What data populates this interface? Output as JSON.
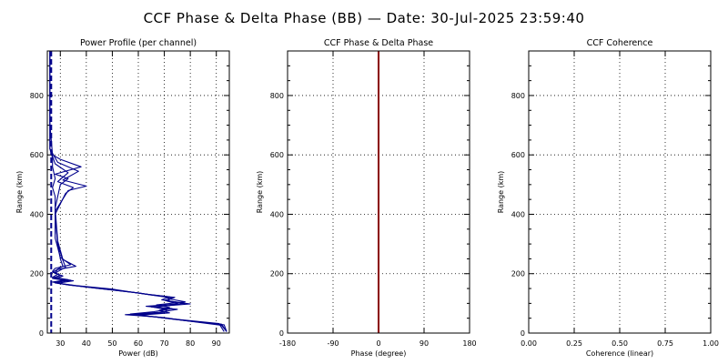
{
  "suptitle": "CCF Phase & Delta Phase (BB) — Date: 30-Jul-2025 23:59:40",
  "chart_data": [
    {
      "type": "line",
      "title": "Power Profile (per channel)",
      "xlabel": "Power (dB)",
      "ylabel": "Range (km)",
      "xlim": [
        25,
        95
      ],
      "ylim": [
        0,
        950
      ],
      "xticks": [
        30,
        40,
        50,
        60,
        70,
        80,
        90
      ],
      "yticks": [
        0,
        200,
        400,
        600,
        800
      ],
      "grid": true,
      "line_color": "#00008b",
      "noise_floor": {
        "x": 26.5,
        "style": "dashed"
      },
      "series": [
        {
          "values": [
            [
              94,
              5
            ],
            [
              92,
              30
            ],
            [
              75,
              45
            ],
            [
              66,
              55
            ],
            [
              55,
              62
            ],
            [
              68,
              70
            ],
            [
              75,
              80
            ],
            [
              65,
              88
            ],
            [
              80,
              98
            ],
            [
              70,
              110
            ],
            [
              74,
              120
            ],
            [
              65,
              128
            ],
            [
              60,
              135
            ],
            [
              45,
              150
            ],
            [
              33,
              162
            ],
            [
              28,
              170
            ],
            [
              34,
              178
            ],
            [
              27,
              185
            ],
            [
              30,
              195
            ],
            [
              27,
              205
            ],
            [
              29,
              215
            ],
            [
              31,
              225
            ],
            [
              30,
              250
            ],
            [
              29,
              300
            ],
            [
              28,
              400
            ],
            [
              28,
              460
            ],
            [
              27,
              490
            ],
            [
              28,
              520
            ],
            [
              27,
              560
            ],
            [
              27,
              590
            ],
            [
              26,
              620
            ],
            [
              26,
              700
            ],
            [
              26,
              800
            ],
            [
              26,
              900
            ],
            [
              26,
              950
            ]
          ]
        },
        {
          "values": [
            [
              94,
              5
            ],
            [
              93,
              28
            ],
            [
              78,
              42
            ],
            [
              70,
              52
            ],
            [
              60,
              60
            ],
            [
              72,
              68
            ],
            [
              68,
              76
            ],
            [
              72,
              86
            ],
            [
              67,
              95
            ],
            [
              78,
              105
            ],
            [
              72,
              115
            ],
            [
              70,
              124
            ],
            [
              62,
              132
            ],
            [
              50,
              148
            ],
            [
              36,
              160
            ],
            [
              29,
              168
            ],
            [
              35,
              176
            ],
            [
              28,
              183
            ],
            [
              31,
              192
            ],
            [
              28,
              202
            ],
            [
              30,
              212
            ],
            [
              32,
              222
            ],
            [
              31,
              245
            ],
            [
              29,
              300
            ],
            [
              28,
              400
            ],
            [
              32,
              470
            ],
            [
              35,
              490
            ],
            [
              29,
              510
            ],
            [
              33,
              540
            ],
            [
              28,
              570
            ],
            [
              26,
              620
            ],
            [
              26,
              750
            ],
            [
              26,
              950
            ]
          ]
        },
        {
          "values": [
            [
              93,
              5
            ],
            [
              91,
              32
            ],
            [
              74,
              47
            ],
            [
              64,
              57
            ],
            [
              57,
              64
            ],
            [
              66,
              72
            ],
            [
              73,
              82
            ],
            [
              63,
              90
            ],
            [
              78,
              100
            ],
            [
              69,
              112
            ],
            [
              72,
              122
            ],
            [
              64,
              130
            ],
            [
              58,
              137
            ],
            [
              43,
              152
            ],
            [
              32,
              164
            ],
            [
              27,
              172
            ],
            [
              33,
              180
            ],
            [
              27,
              188
            ],
            [
              29,
              198
            ],
            [
              27,
              208
            ],
            [
              28,
              218
            ],
            [
              34,
              230
            ],
            [
              30,
              255
            ],
            [
              28,
              320
            ],
            [
              28,
              410
            ],
            [
              33,
              480
            ],
            [
              40,
              495
            ],
            [
              31,
              515
            ],
            [
              37,
              545
            ],
            [
              29,
              575
            ],
            [
              26,
              620
            ],
            [
              26,
              800
            ],
            [
              26,
              950
            ]
          ]
        },
        {
          "values": [
            [
              94,
              5
            ],
            [
              92,
              26
            ],
            [
              76,
              44
            ],
            [
              67,
              54
            ],
            [
              58,
              61
            ],
            [
              70,
              69
            ],
            [
              71,
              79
            ],
            [
              66,
              87
            ],
            [
              76,
              97
            ],
            [
              71,
              108
            ],
            [
              73,
              118
            ],
            [
              66,
              127
            ],
            [
              61,
              134
            ],
            [
              47,
              149
            ],
            [
              34,
              161
            ],
            [
              28,
              169
            ],
            [
              32,
              177
            ],
            [
              27,
              184
            ],
            [
              30,
              194
            ],
            [
              28,
              204
            ],
            [
              29,
              214
            ],
            [
              36,
              225
            ],
            [
              31,
              248
            ],
            [
              29,
              310
            ],
            [
              28,
              420
            ],
            [
              30,
              500
            ],
            [
              33,
              520
            ],
            [
              28,
              535
            ],
            [
              38,
              560
            ],
            [
              30,
              585
            ],
            [
              27,
              600
            ],
            [
              26,
              700
            ],
            [
              26,
              950
            ]
          ]
        }
      ]
    },
    {
      "type": "line",
      "title": "CCF Phase & Delta Phase",
      "xlabel": "Phase (degree)",
      "ylabel": "Range (km)",
      "xlim": [
        -180,
        180
      ],
      "ylim": [
        0,
        950
      ],
      "xticks": [
        -180,
        -90,
        0,
        90,
        180
      ],
      "yticks": [
        0,
        200,
        400,
        600,
        800
      ],
      "grid": true,
      "series": [
        {
          "color": "#8b0000",
          "values": [
            [
              0,
              0
            ],
            [
              0,
              950
            ]
          ]
        }
      ]
    },
    {
      "type": "line",
      "title": "CCF Coherence",
      "xlabel": "Coherence (linear)",
      "ylabel": "Range (km)",
      "xlim": [
        0,
        1
      ],
      "ylim": [
        0,
        950
      ],
      "xticks": [
        0.0,
        0.25,
        0.5,
        0.75,
        1.0
      ],
      "xtick_labels": [
        "0.00",
        "0.25",
        "0.50",
        "0.75",
        "1.00"
      ],
      "yticks": [
        0,
        200,
        400,
        600,
        800
      ],
      "grid": true,
      "series": []
    }
  ]
}
